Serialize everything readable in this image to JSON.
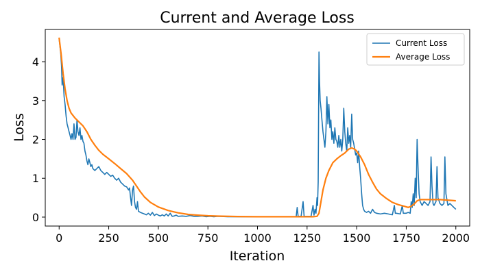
{
  "chart_data": {
    "type": "line",
    "title": "Current and Average Loss",
    "xlabel": "Iteration",
    "ylabel": "Loss",
    "xlim": [
      -70,
      2070
    ],
    "ylim": [
      -0.23,
      4.83
    ],
    "xticks": [
      0,
      250,
      500,
      750,
      1000,
      1250,
      1500,
      1750,
      2000
    ],
    "yticks": [
      0,
      1,
      2,
      3,
      4
    ],
    "grid": false,
    "legend": {
      "position": "top-right"
    },
    "series": [
      {
        "name": "Current Loss",
        "color": "#1f77b4",
        "points": [
          [
            0,
            4.6
          ],
          [
            8,
            4.2
          ],
          [
            12,
            3.9
          ],
          [
            15,
            3.4
          ],
          [
            20,
            3.6
          ],
          [
            25,
            3.1
          ],
          [
            30,
            2.9
          ],
          [
            35,
            2.6
          ],
          [
            40,
            2.4
          ],
          [
            45,
            2.3
          ],
          [
            50,
            2.2
          ],
          [
            55,
            2.1
          ],
          [
            60,
            2.0
          ],
          [
            65,
            2.15
          ],
          [
            70,
            2.0
          ],
          [
            75,
            2.4
          ],
          [
            80,
            2.0
          ],
          [
            85,
            2.05
          ],
          [
            90,
            2.5
          ],
          [
            95,
            2.2
          ],
          [
            100,
            2.1
          ],
          [
            105,
            2.3
          ],
          [
            110,
            2.0
          ],
          [
            115,
            2.1
          ],
          [
            120,
            1.95
          ],
          [
            125,
            1.9
          ],
          [
            130,
            1.7
          ],
          [
            135,
            1.6
          ],
          [
            140,
            1.45
          ],
          [
            145,
            1.35
          ],
          [
            150,
            1.5
          ],
          [
            155,
            1.4
          ],
          [
            160,
            1.3
          ],
          [
            165,
            1.35
          ],
          [
            170,
            1.25
          ],
          [
            180,
            1.2
          ],
          [
            190,
            1.25
          ],
          [
            200,
            1.3
          ],
          [
            210,
            1.2
          ],
          [
            220,
            1.15
          ],
          [
            230,
            1.1
          ],
          [
            240,
            1.15
          ],
          [
            250,
            1.1
          ],
          [
            260,
            1.05
          ],
          [
            270,
            1.08
          ],
          [
            280,
            1.0
          ],
          [
            290,
            0.95
          ],
          [
            300,
            1.0
          ],
          [
            310,
            0.9
          ],
          [
            320,
            0.85
          ],
          [
            330,
            0.8
          ],
          [
            340,
            0.78
          ],
          [
            350,
            0.7
          ],
          [
            355,
            0.75
          ],
          [
            360,
            0.5
          ],
          [
            365,
            0.3
          ],
          [
            370,
            0.7
          ],
          [
            375,
            0.8
          ],
          [
            380,
            0.4
          ],
          [
            385,
            0.25
          ],
          [
            390,
            0.2
          ],
          [
            395,
            0.4
          ],
          [
            400,
            0.15
          ],
          [
            410,
            0.12
          ],
          [
            420,
            0.1
          ],
          [
            430,
            0.08
          ],
          [
            440,
            0.06
          ],
          [
            450,
            0.1
          ],
          [
            460,
            0.05
          ],
          [
            470,
            0.12
          ],
          [
            480,
            0.04
          ],
          [
            490,
            0.08
          ],
          [
            500,
            0.05
          ],
          [
            510,
            0.03
          ],
          [
            520,
            0.06
          ],
          [
            530,
            0.03
          ],
          [
            540,
            0.08
          ],
          [
            550,
            0.03
          ],
          [
            560,
            0.1
          ],
          [
            570,
            0.02
          ],
          [
            580,
            0.03
          ],
          [
            590,
            0.05
          ],
          [
            600,
            0.02
          ],
          [
            620,
            0.03
          ],
          [
            640,
            0.02
          ],
          [
            660,
            0.04
          ],
          [
            680,
            0.02
          ],
          [
            700,
            0.02
          ],
          [
            720,
            0.03
          ],
          [
            740,
            0.01
          ],
          [
            760,
            0.02
          ],
          [
            780,
            0.01
          ],
          [
            800,
            0.02
          ],
          [
            850,
            0.01
          ],
          [
            900,
            0.01
          ],
          [
            950,
            0.01
          ],
          [
            1000,
            0.01
          ],
          [
            1050,
            0.01
          ],
          [
            1100,
            0.01
          ],
          [
            1150,
            0.01
          ],
          [
            1195,
            0.01
          ],
          [
            1200,
            0.25
          ],
          [
            1205,
            0.02
          ],
          [
            1220,
            0.02
          ],
          [
            1230,
            0.4
          ],
          [
            1235,
            0.02
          ],
          [
            1250,
            0.02
          ],
          [
            1270,
            0.02
          ],
          [
            1280,
            0.3
          ],
          [
            1285,
            0.05
          ],
          [
            1290,
            0.2
          ],
          [
            1295,
            0.1
          ],
          [
            1300,
            0.5
          ],
          [
            1303,
            0.3
          ],
          [
            1306,
            0.9
          ],
          [
            1310,
            4.25
          ],
          [
            1313,
            3.5
          ],
          [
            1316,
            3.0
          ],
          [
            1320,
            2.8
          ],
          [
            1325,
            2.5
          ],
          [
            1330,
            2.2
          ],
          [
            1335,
            2.0
          ],
          [
            1340,
            1.8
          ],
          [
            1345,
            2.2
          ],
          [
            1350,
            3.1
          ],
          [
            1355,
            2.4
          ],
          [
            1360,
            2.9
          ],
          [
            1365,
            2.3
          ],
          [
            1370,
            2.5
          ],
          [
            1375,
            2.0
          ],
          [
            1380,
            2.2
          ],
          [
            1385,
            1.9
          ],
          [
            1390,
            2.3
          ],
          [
            1395,
            2.0
          ],
          [
            1400,
            1.95
          ],
          [
            1405,
            1.8
          ],
          [
            1410,
            2.1
          ],
          [
            1415,
            1.8
          ],
          [
            1420,
            2.0
          ],
          [
            1425,
            1.7
          ],
          [
            1430,
            2.0
          ],
          [
            1435,
            2.8
          ],
          [
            1440,
            2.2
          ],
          [
            1445,
            1.9
          ],
          [
            1450,
            1.7
          ],
          [
            1455,
            2.3
          ],
          [
            1460,
            1.9
          ],
          [
            1465,
            2.1
          ],
          [
            1470,
            1.8
          ],
          [
            1475,
            2.65
          ],
          [
            1480,
            2.0
          ],
          [
            1485,
            1.9
          ],
          [
            1490,
            1.75
          ],
          [
            1495,
            1.6
          ],
          [
            1500,
            1.65
          ],
          [
            1505,
            1.4
          ],
          [
            1510,
            1.7
          ],
          [
            1515,
            1.3
          ],
          [
            1520,
            1.0
          ],
          [
            1525,
            0.6
          ],
          [
            1530,
            0.3
          ],
          [
            1535,
            0.2
          ],
          [
            1540,
            0.15
          ],
          [
            1550,
            0.12
          ],
          [
            1560,
            0.15
          ],
          [
            1570,
            0.1
          ],
          [
            1580,
            0.2
          ],
          [
            1590,
            0.12
          ],
          [
            1600,
            0.1
          ],
          [
            1620,
            0.08
          ],
          [
            1640,
            0.1
          ],
          [
            1660,
            0.08
          ],
          [
            1680,
            0.06
          ],
          [
            1690,
            0.3
          ],
          [
            1695,
            0.1
          ],
          [
            1700,
            0.1
          ],
          [
            1720,
            0.08
          ],
          [
            1730,
            0.3
          ],
          [
            1735,
            0.1
          ],
          [
            1750,
            0.1
          ],
          [
            1760,
            0.12
          ],
          [
            1770,
            0.1
          ],
          [
            1775,
            0.4
          ],
          [
            1780,
            0.25
          ],
          [
            1785,
            0.6
          ],
          [
            1790,
            0.3
          ],
          [
            1795,
            1.0
          ],
          [
            1800,
            0.5
          ],
          [
            1805,
            2.0
          ],
          [
            1810,
            1.2
          ],
          [
            1815,
            0.6
          ],
          [
            1820,
            0.4
          ],
          [
            1830,
            0.3
          ],
          [
            1840,
            0.4
          ],
          [
            1850,
            0.35
          ],
          [
            1860,
            0.3
          ],
          [
            1870,
            0.4
          ],
          [
            1875,
            1.55
          ],
          [
            1880,
            0.8
          ],
          [
            1885,
            0.35
          ],
          [
            1890,
            0.3
          ],
          [
            1900,
            0.4
          ],
          [
            1905,
            1.3
          ],
          [
            1910,
            0.5
          ],
          [
            1920,
            0.35
          ],
          [
            1930,
            0.3
          ],
          [
            1940,
            0.35
          ],
          [
            1945,
            1.55
          ],
          [
            1950,
            0.6
          ],
          [
            1960,
            0.3
          ],
          [
            1970,
            0.35
          ],
          [
            1980,
            0.3
          ],
          [
            1990,
            0.25
          ],
          [
            2000,
            0.2
          ]
        ]
      },
      {
        "name": "Average Loss",
        "color": "#ff7f0e",
        "points": [
          [
            0,
            4.62
          ],
          [
            10,
            4.2
          ],
          [
            20,
            3.7
          ],
          [
            30,
            3.3
          ],
          [
            40,
            3.0
          ],
          [
            50,
            2.8
          ],
          [
            60,
            2.68
          ],
          [
            80,
            2.55
          ],
          [
            100,
            2.45
          ],
          [
            120,
            2.35
          ],
          [
            140,
            2.2
          ],
          [
            160,
            2.0
          ],
          [
            180,
            1.85
          ],
          [
            200,
            1.72
          ],
          [
            220,
            1.62
          ],
          [
            250,
            1.5
          ],
          [
            280,
            1.38
          ],
          [
            310,
            1.25
          ],
          [
            340,
            1.12
          ],
          [
            370,
            0.95
          ],
          [
            390,
            0.8
          ],
          [
            410,
            0.65
          ],
          [
            430,
            0.52
          ],
          [
            460,
            0.38
          ],
          [
            500,
            0.26
          ],
          [
            550,
            0.17
          ],
          [
            600,
            0.11
          ],
          [
            650,
            0.07
          ],
          [
            700,
            0.05
          ],
          [
            750,
            0.035
          ],
          [
            800,
            0.025
          ],
          [
            900,
            0.015
          ],
          [
            1000,
            0.01
          ],
          [
            1100,
            0.01
          ],
          [
            1200,
            0.01
          ],
          [
            1280,
            0.01
          ],
          [
            1300,
            0.02
          ],
          [
            1310,
            0.1
          ],
          [
            1320,
            0.4
          ],
          [
            1330,
            0.7
          ],
          [
            1345,
            1.0
          ],
          [
            1360,
            1.2
          ],
          [
            1380,
            1.4
          ],
          [
            1400,
            1.5
          ],
          [
            1420,
            1.58
          ],
          [
            1440,
            1.65
          ],
          [
            1460,
            1.75
          ],
          [
            1475,
            1.78
          ],
          [
            1490,
            1.75
          ],
          [
            1500,
            1.7
          ],
          [
            1520,
            1.55
          ],
          [
            1540,
            1.35
          ],
          [
            1560,
            1.1
          ],
          [
            1580,
            0.9
          ],
          [
            1600,
            0.72
          ],
          [
            1620,
            0.6
          ],
          [
            1650,
            0.48
          ],
          [
            1680,
            0.38
          ],
          [
            1710,
            0.32
          ],
          [
            1740,
            0.28
          ],
          [
            1760,
            0.25
          ],
          [
            1775,
            0.28
          ],
          [
            1790,
            0.34
          ],
          [
            1805,
            0.42
          ],
          [
            1820,
            0.45
          ],
          [
            1850,
            0.45
          ],
          [
            1880,
            0.45
          ],
          [
            1900,
            0.45
          ],
          [
            1920,
            0.45
          ],
          [
            1950,
            0.44
          ],
          [
            1980,
            0.43
          ],
          [
            2000,
            0.42
          ]
        ]
      }
    ]
  }
}
